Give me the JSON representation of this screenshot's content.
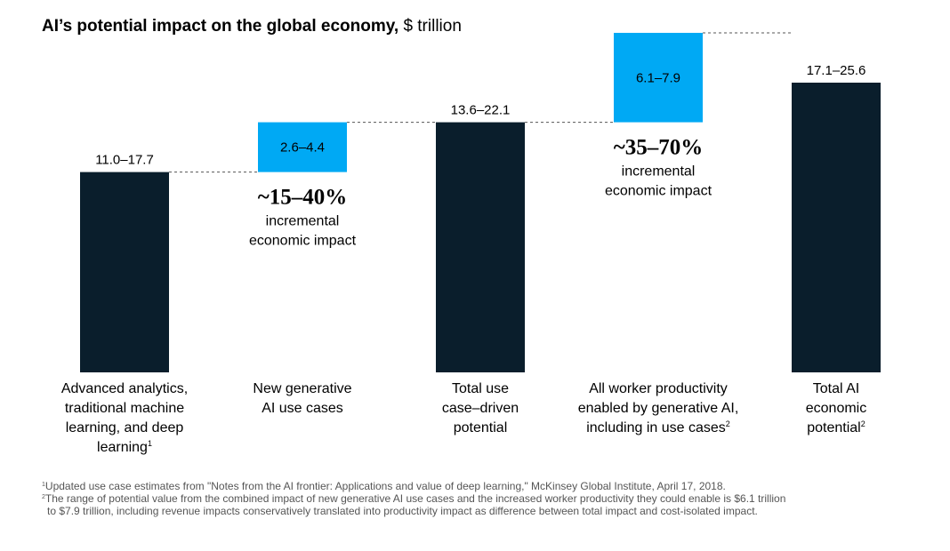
{
  "title": "AI’s potential impact on the global economy,",
  "title_unit": "$ trillion",
  "chart_data": {
    "type": "waterfall",
    "unit": "$ trillion",
    "colors": {
      "total": "#0a1e2c",
      "increment": "#00a9f4"
    },
    "bars": [
      {
        "kind": "total",
        "low": 11.0,
        "high": 17.7,
        "value_label": "11.0–17.7",
        "category_lines": [
          "Advanced analytics,",
          "traditional machine",
          "learning, and deep",
          "learning"
        ],
        "footnote_ref": "1"
      },
      {
        "kind": "increment",
        "low": 2.6,
        "high": 4.4,
        "value_label": "2.6–4.4",
        "category_lines": [
          "New generative",
          "AI use cases"
        ],
        "footnote_ref": ""
      },
      {
        "kind": "total",
        "low": 13.6,
        "high": 22.1,
        "value_label": "13.6–22.1",
        "category_lines": [
          "Total use",
          "case–driven",
          "potential"
        ],
        "footnote_ref": ""
      },
      {
        "kind": "increment",
        "low": 6.1,
        "high": 7.9,
        "value_label": "6.1–7.9",
        "category_lines": [
          "All worker productivity",
          "enabled by generative AI,",
          "including in use cases"
        ],
        "footnote_ref": "2"
      },
      {
        "kind": "total",
        "low": 17.1,
        "high": 25.6,
        "value_label": "17.1–25.6",
        "category_lines": [
          "Total AI",
          "economic",
          "potential"
        ],
        "footnote_ref": "2"
      }
    ],
    "annotations": [
      {
        "after_bar": 1,
        "big": "~15–40%",
        "lines": [
          "incremental",
          "economic impact"
        ]
      },
      {
        "after_bar": 3,
        "big": "~35–70%",
        "lines": [
          "incremental",
          "economic impact"
        ]
      }
    ]
  },
  "footnotes": {
    "f1_mark": "1",
    "f1_text": "Updated use case estimates from \"Notes from the AI frontier: Applications and value of deep learning,\" McKinsey Global Institute, April 17, 2018.",
    "f2_mark": "2",
    "f2_text": "The range of potential value from the combined impact of new generative AI use cases and the increased worker productivity they could enable is $6.1 trillion",
    "f2_text_cont": "to $7.9 trillion, including revenue impacts conservatively translated into productivity impact as difference between total impact and cost-isolated impact."
  }
}
